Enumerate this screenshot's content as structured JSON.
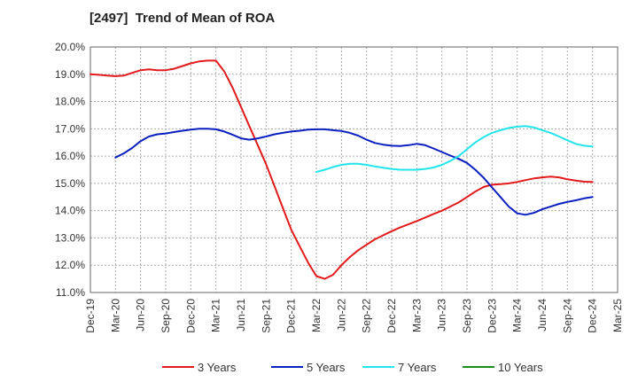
{
  "chart_data": {
    "type": "line",
    "title": "[2497]  Trend of Mean of ROA",
    "xlabel": "",
    "ylabel": "",
    "ylim": [
      11.0,
      20.0
    ],
    "y_ticks": [
      "11.0%",
      "12.0%",
      "13.0%",
      "14.0%",
      "15.0%",
      "16.0%",
      "17.0%",
      "18.0%",
      "19.0%",
      "20.0%"
    ],
    "x_ticks": [
      "Dec-19",
      "Mar-20",
      "Jun-20",
      "Sep-20",
      "Dec-20",
      "Mar-21",
      "Jun-21",
      "Sep-21",
      "Dec-21",
      "Mar-22",
      "Jun-22",
      "Sep-22",
      "Dec-22",
      "Mar-23",
      "Jun-23",
      "Sep-23",
      "Dec-23",
      "Mar-24",
      "Jun-24",
      "Sep-24",
      "Dec-24",
      "Mar-25"
    ],
    "grid": true,
    "legend_position": "bottom",
    "series": [
      {
        "name": "3 Years",
        "color": "#e31a1c",
        "points": [
          [
            "Dec-19",
            19.0
          ],
          [
            "Jan-20",
            18.98
          ],
          [
            "Feb-20",
            18.95
          ],
          [
            "Mar-20",
            18.93
          ],
          [
            "Apr-20",
            18.95
          ],
          [
            "May-20",
            19.05
          ],
          [
            "Jun-20",
            19.15
          ],
          [
            "Jul-20",
            19.18
          ],
          [
            "Aug-20",
            19.15
          ],
          [
            "Sep-20",
            19.15
          ],
          [
            "Oct-20",
            19.2
          ],
          [
            "Nov-20",
            19.3
          ],
          [
            "Dec-20",
            19.4
          ],
          [
            "Jan-21",
            19.47
          ],
          [
            "Feb-21",
            19.5
          ],
          [
            "Mar-21",
            19.5
          ],
          [
            "Apr-21",
            19.1
          ],
          [
            "May-21",
            18.5
          ],
          [
            "Jun-21",
            17.8
          ],
          [
            "Jul-21",
            17.1
          ],
          [
            "Aug-21",
            16.4
          ],
          [
            "Sep-21",
            15.7
          ],
          [
            "Oct-21",
            14.9
          ],
          [
            "Nov-21",
            14.1
          ],
          [
            "Dec-21",
            13.3
          ],
          [
            "Jan-22",
            12.7
          ],
          [
            "Feb-22",
            12.1
          ],
          [
            "Mar-22",
            11.6
          ],
          [
            "Apr-22",
            11.5
          ],
          [
            "May-22",
            11.65
          ],
          [
            "Jun-22",
            12.0
          ],
          [
            "Jul-22",
            12.3
          ],
          [
            "Aug-22",
            12.55
          ],
          [
            "Sep-22",
            12.75
          ],
          [
            "Oct-22",
            12.95
          ],
          [
            "Nov-22",
            13.1
          ],
          [
            "Dec-22",
            13.25
          ],
          [
            "Jan-23",
            13.38
          ],
          [
            "Feb-23",
            13.5
          ],
          [
            "Mar-23",
            13.62
          ],
          [
            "Apr-23",
            13.75
          ],
          [
            "May-23",
            13.88
          ],
          [
            "Jun-23",
            14.0
          ],
          [
            "Jul-23",
            14.15
          ],
          [
            "Aug-23",
            14.3
          ],
          [
            "Sep-23",
            14.5
          ],
          [
            "Oct-23",
            14.7
          ],
          [
            "Nov-23",
            14.87
          ],
          [
            "Dec-23",
            14.95
          ],
          [
            "Jan-24",
            14.97
          ],
          [
            "Feb-24",
            15.0
          ],
          [
            "Mar-24",
            15.05
          ],
          [
            "Apr-24",
            15.12
          ],
          [
            "May-24",
            15.18
          ],
          [
            "Jun-24",
            15.22
          ],
          [
            "Jul-24",
            15.25
          ],
          [
            "Aug-24",
            15.22
          ],
          [
            "Sep-24",
            15.15
          ],
          [
            "Oct-24",
            15.1
          ],
          [
            "Nov-24",
            15.06
          ],
          [
            "Dec-24",
            15.05
          ]
        ]
      },
      {
        "name": "5 Years",
        "color": "#0a1fbf",
        "points": [
          [
            "Mar-20",
            15.95
          ],
          [
            "Apr-20",
            16.1
          ],
          [
            "May-20",
            16.3
          ],
          [
            "Jun-20",
            16.55
          ],
          [
            "Jul-20",
            16.72
          ],
          [
            "Aug-20",
            16.8
          ],
          [
            "Sep-20",
            16.83
          ],
          [
            "Oct-20",
            16.88
          ],
          [
            "Nov-20",
            16.93
          ],
          [
            "Dec-20",
            16.97
          ],
          [
            "Jan-21",
            17.0
          ],
          [
            "Feb-21",
            17.0
          ],
          [
            "Mar-21",
            16.98
          ],
          [
            "Apr-21",
            16.9
          ],
          [
            "May-21",
            16.78
          ],
          [
            "Jun-21",
            16.65
          ],
          [
            "Jul-21",
            16.6
          ],
          [
            "Aug-21",
            16.65
          ],
          [
            "Sep-21",
            16.72
          ],
          [
            "Oct-21",
            16.8
          ],
          [
            "Nov-21",
            16.85
          ],
          [
            "Dec-21",
            16.9
          ],
          [
            "Jan-22",
            16.93
          ],
          [
            "Feb-22",
            16.97
          ],
          [
            "Mar-22",
            16.98
          ],
          [
            "Apr-22",
            16.98
          ],
          [
            "May-22",
            16.95
          ],
          [
            "Jun-22",
            16.92
          ],
          [
            "Jul-22",
            16.85
          ],
          [
            "Aug-22",
            16.75
          ],
          [
            "Sep-22",
            16.6
          ],
          [
            "Oct-22",
            16.48
          ],
          [
            "Nov-22",
            16.42
          ],
          [
            "Dec-22",
            16.38
          ],
          [
            "Jan-23",
            16.37
          ],
          [
            "Feb-23",
            16.4
          ],
          [
            "Mar-23",
            16.45
          ],
          [
            "Apr-23",
            16.4
          ],
          [
            "May-23",
            16.28
          ],
          [
            "Jun-23",
            16.15
          ],
          [
            "Jul-23",
            16.02
          ],
          [
            "Aug-23",
            15.9
          ],
          [
            "Sep-23",
            15.75
          ],
          [
            "Oct-23",
            15.5
          ],
          [
            "Nov-23",
            15.2
          ],
          [
            "Dec-23",
            14.85
          ],
          [
            "Jan-24",
            14.5
          ],
          [
            "Feb-24",
            14.15
          ],
          [
            "Mar-24",
            13.9
          ],
          [
            "Apr-24",
            13.85
          ],
          [
            "May-24",
            13.92
          ],
          [
            "Jun-24",
            14.05
          ],
          [
            "Jul-24",
            14.15
          ],
          [
            "Aug-24",
            14.25
          ],
          [
            "Sep-24",
            14.32
          ],
          [
            "Oct-24",
            14.38
          ],
          [
            "Nov-24",
            14.45
          ],
          [
            "Dec-24",
            14.5
          ]
        ]
      },
      {
        "name": "7 Years",
        "color": "#22e5ec",
        "points": [
          [
            "Mar-22",
            15.42
          ],
          [
            "Apr-22",
            15.5
          ],
          [
            "May-22",
            15.6
          ],
          [
            "Jun-22",
            15.68
          ],
          [
            "Jul-22",
            15.72
          ],
          [
            "Aug-22",
            15.72
          ],
          [
            "Sep-22",
            15.68
          ],
          [
            "Oct-22",
            15.62
          ],
          [
            "Nov-22",
            15.57
          ],
          [
            "Dec-22",
            15.53
          ],
          [
            "Jan-23",
            15.5
          ],
          [
            "Feb-23",
            15.5
          ],
          [
            "Mar-23",
            15.5
          ],
          [
            "Apr-23",
            15.53
          ],
          [
            "May-23",
            15.58
          ],
          [
            "Jun-23",
            15.68
          ],
          [
            "Jul-23",
            15.82
          ],
          [
            "Aug-23",
            16.0
          ],
          [
            "Sep-23",
            16.25
          ],
          [
            "Oct-23",
            16.5
          ],
          [
            "Nov-23",
            16.7
          ],
          [
            "Dec-23",
            16.85
          ],
          [
            "Jan-24",
            16.95
          ],
          [
            "Feb-24",
            17.03
          ],
          [
            "Mar-24",
            17.08
          ],
          [
            "Apr-24",
            17.1
          ],
          [
            "May-24",
            17.05
          ],
          [
            "Jun-24",
            16.95
          ],
          [
            "Jul-24",
            16.85
          ],
          [
            "Aug-24",
            16.72
          ],
          [
            "Sep-24",
            16.58
          ],
          [
            "Oct-24",
            16.45
          ],
          [
            "Nov-24",
            16.38
          ],
          [
            "Dec-24",
            16.35
          ]
        ]
      },
      {
        "name": "10 Years",
        "color": "#1a8c1a",
        "points": []
      }
    ]
  }
}
